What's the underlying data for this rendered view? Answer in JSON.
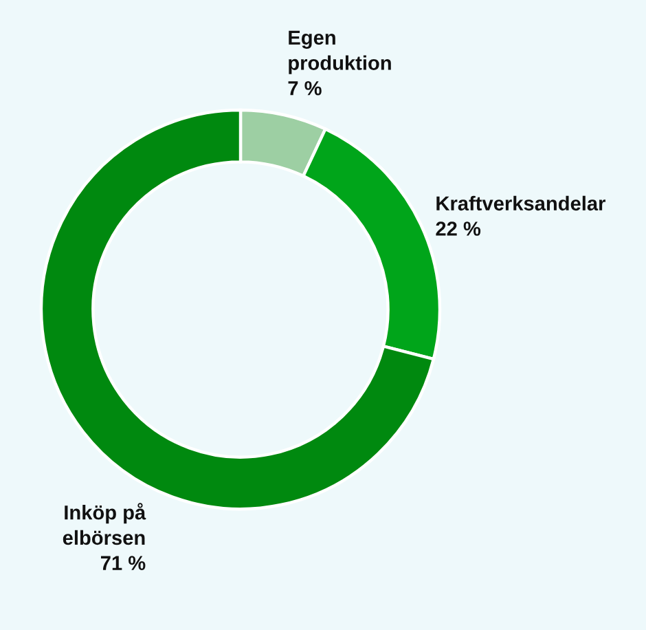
{
  "chart_data": {
    "type": "donut",
    "categories": [
      "Egen produktion",
      "Kraftverksandelar",
      "Inköp på elbörsen"
    ],
    "values": [
      7,
      22,
      71
    ],
    "colors": [
      "#9dcfa3",
      "#00a51a",
      "#00890f"
    ],
    "value_labels": [
      "7 %",
      "22 %",
      "71 %"
    ]
  }
}
